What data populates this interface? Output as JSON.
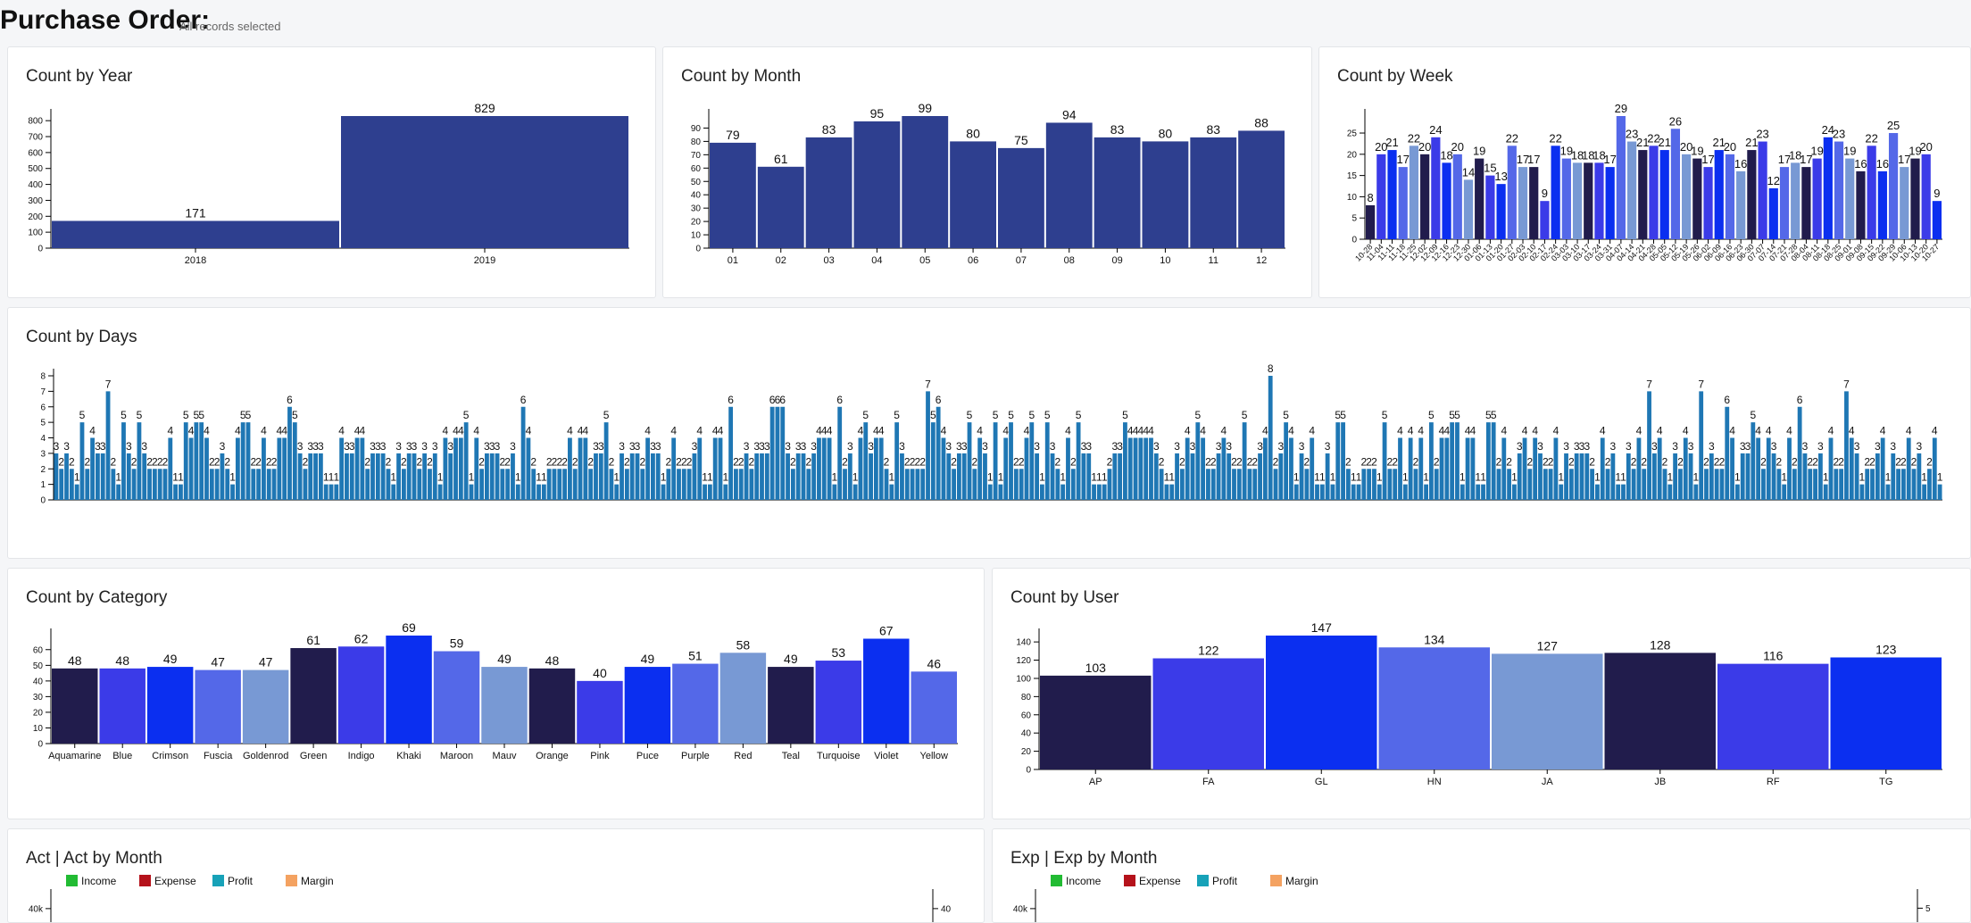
{
  "header": {
    "title": "Purchase Order:",
    "subtitle": "All records selected"
  },
  "chart_data": [
    {
      "type": "bar",
      "title": "Count by Year",
      "categories": [
        "2018",
        "2019"
      ],
      "values": [
        171,
        829
      ],
      "color": "#2e3f8f",
      "ylim": [
        0,
        829
      ],
      "yticks": [
        0,
        100,
        200,
        300,
        400,
        500,
        600,
        700,
        800
      ]
    },
    {
      "type": "bar",
      "title": "Count by Month",
      "categories": [
        "01",
        "02",
        "03",
        "04",
        "05",
        "06",
        "07",
        "08",
        "09",
        "10",
        "11",
        "12"
      ],
      "values": [
        79,
        61,
        83,
        95,
        99,
        80,
        75,
        94,
        83,
        80,
        83,
        88
      ],
      "color": "#2e3f8f",
      "ylim": [
        0,
        99
      ],
      "yticks": [
        0,
        10,
        20,
        30,
        40,
        50,
        60,
        70,
        80,
        90
      ]
    },
    {
      "type": "bar",
      "title": "Count by Week",
      "categories": [
        "10-28",
        "11-04",
        "11-11",
        "11-18",
        "11-25",
        "12-02",
        "12-09",
        "12-16",
        "12-23",
        "12-30",
        "01-06",
        "01-13",
        "01-20",
        "01-27",
        "02-03",
        "02-10",
        "02-17",
        "02-24",
        "03-03",
        "03-10",
        "03-17",
        "03-24",
        "03-31",
        "04-07",
        "04-14",
        "04-21",
        "04-28",
        "05-05",
        "05-12",
        "05-19",
        "05-26",
        "06-02",
        "06-09",
        "06-16",
        "06-23",
        "06-30",
        "07-07",
        "07-14",
        "07-21",
        "07-28",
        "08-04",
        "08-11",
        "08-18",
        "08-25",
        "09-01",
        "09-08",
        "09-15",
        "09-22",
        "09-29",
        "10-06",
        "10-13",
        "10-20",
        "10-27"
      ],
      "values": [
        8,
        20,
        21,
        17,
        22,
        20,
        24,
        18,
        20,
        14,
        19,
        15,
        13,
        22,
        17,
        17,
        9,
        22,
        19,
        18,
        18,
        18,
        17,
        29,
        23,
        21,
        22,
        21,
        26,
        20,
        19,
        17,
        21,
        20,
        16,
        21,
        23,
        12,
        17,
        18,
        17,
        19,
        24,
        23,
        19,
        16,
        22,
        16,
        25,
        17,
        19,
        20,
        9
      ],
      "palette": [
        "#211c4c",
        "#3b3be8",
        "#0b2ff0",
        "#5468e8",
        "#7899d4"
      ],
      "rotate_labels": true,
      "ylim": [
        0,
        29
      ],
      "yticks": [
        0,
        5,
        10,
        15,
        20,
        25
      ]
    },
    {
      "type": "bar",
      "title": "Count by Days",
      "values": [
        3,
        2,
        3,
        2,
        1,
        5,
        2,
        4,
        3,
        3,
        7,
        2,
        1,
        5,
        3,
        2,
        5,
        3,
        2,
        2,
        2,
        2,
        4,
        1,
        1,
        5,
        4,
        5,
        5,
        4,
        2,
        2,
        3,
        2,
        1,
        4,
        5,
        5,
        2,
        2,
        4,
        2,
        2,
        4,
        4,
        6,
        5,
        3,
        2,
        3,
        3,
        3,
        1,
        1,
        1,
        4,
        3,
        3,
        4,
        4,
        2,
        3,
        3,
        3,
        2,
        1,
        3,
        2,
        3,
        3,
        2,
        3,
        2,
        3,
        1,
        4,
        3,
        4,
        4,
        5,
        1,
        4,
        2,
        3,
        3,
        3,
        2,
        2,
        3,
        1,
        6,
        4,
        2,
        1,
        1,
        2,
        2,
        2,
        2,
        4,
        2,
        4,
        4,
        2,
        3,
        3,
        5,
        2,
        1,
        3,
        2,
        3,
        3,
        2,
        4,
        3,
        3,
        1,
        2,
        4,
        2,
        2,
        2,
        3,
        4,
        1,
        1,
        4,
        4,
        1,
        6,
        2,
        2,
        3,
        2,
        3,
        3,
        3,
        6,
        6,
        6,
        3,
        2,
        3,
        3,
        2,
        3,
        4,
        4,
        4,
        1,
        6,
        2,
        3,
        1,
        4,
        5,
        3,
        4,
        4,
        2,
        1,
        5,
        3,
        2,
        2,
        2,
        2,
        7,
        5,
        6,
        4,
        3,
        2,
        3,
        3,
        5,
        2,
        4,
        3,
        1,
        5,
        1,
        4,
        5,
        2,
        2,
        4,
        5,
        3,
        1,
        5,
        3,
        2,
        1,
        4,
        2,
        5,
        3,
        3,
        1,
        1,
        1,
        2,
        3,
        3,
        5,
        4,
        4,
        4,
        4,
        4,
        3,
        2,
        1,
        1,
        3,
        2,
        4,
        3,
        5,
        4,
        2,
        2,
        3,
        4,
        3,
        2,
        2,
        5,
        2,
        2,
        3,
        4,
        8,
        2,
        3,
        5,
        4,
        1,
        3,
        2,
        4,
        1,
        1,
        3,
        1,
        5,
        5,
        2,
        1,
        1,
        2,
        2,
        2,
        1,
        5,
        2,
        2,
        4,
        1,
        4,
        2,
        4,
        1,
        5,
        2,
        4,
        4,
        5,
        5,
        1,
        4,
        4,
        1,
        1,
        5,
        5,
        2,
        4,
        2,
        1,
        3,
        4,
        2,
        4,
        3,
        2,
        2,
        4,
        1,
        3,
        2,
        3,
        3,
        3,
        2,
        1,
        4,
        2,
        3,
        1,
        1,
        3,
        2,
        4,
        2,
        7,
        3,
        4,
        2,
        1,
        3,
        2,
        4,
        3,
        1,
        7,
        2,
        3,
        2,
        2,
        6,
        4,
        1,
        3,
        3,
        5,
        4,
        2,
        4,
        3,
        2,
        1,
        4,
        2,
        6,
        3,
        2,
        2,
        3,
        1,
        4,
        2,
        2,
        7,
        4,
        3,
        1,
        2,
        2,
        3,
        4,
        1,
        3,
        2,
        2,
        4,
        2,
        3,
        1,
        2,
        4,
        1
      ],
      "color": "#1f77b4",
      "ylim": [
        0,
        8
      ],
      "yticks": [
        0,
        1,
        2,
        3,
        4,
        5,
        6,
        7,
        8
      ]
    },
    {
      "type": "bar",
      "title": "Count by Category",
      "categories": [
        "Aquamarine",
        "Blue",
        "Crimson",
        "Fuscia",
        "Goldenrod",
        "Green",
        "Indigo",
        "Khaki",
        "Maroon",
        "Mauv",
        "Orange",
        "Pink",
        "Puce",
        "Purple",
        "Red",
        "Teal",
        "Turquoise",
        "Violet",
        "Yellow"
      ],
      "values": [
        48,
        48,
        49,
        47,
        47,
        61,
        62,
        69,
        59,
        49,
        48,
        40,
        49,
        51,
        58,
        49,
        53,
        67,
        46
      ],
      "palette": [
        "#211c4c",
        "#3b3be8",
        "#0b2ff0",
        "#5468e8",
        "#7899d4"
      ],
      "ylim": [
        0,
        69
      ],
      "yticks": [
        0,
        10,
        20,
        30,
        40,
        50,
        60
      ]
    },
    {
      "type": "bar",
      "title": "Count by User",
      "categories": [
        "AP",
        "FA",
        "GL",
        "HN",
        "JA",
        "JB",
        "RF",
        "TG"
      ],
      "values": [
        103,
        122,
        147,
        134,
        127,
        128,
        116,
        123
      ],
      "palette": [
        "#211c4c",
        "#3b3be8",
        "#0b2ff0",
        "#5468e8",
        "#7899d4"
      ],
      "ylim": [
        0,
        147
      ],
      "yticks": [
        0,
        20,
        40,
        60,
        80,
        100,
        120,
        140
      ]
    },
    {
      "type": "combo",
      "title": "Act | Act by Month",
      "series": [
        {
          "name": "Income",
          "color": "#22bb33"
        },
        {
          "name": "Expense",
          "color": "#b5121b"
        },
        {
          "name": "Profit",
          "color": "#17a2b8"
        },
        {
          "name": "Margin",
          "color": "#f4a261"
        }
      ],
      "ylim": [
        0,
        45000
      ],
      "yticks": [
        {
          "value": 40000,
          "label": "40k"
        }
      ],
      "y2lim": [
        0,
        45
      ],
      "y2ticks": [
        40
      ]
    },
    {
      "type": "combo",
      "title": "Exp | Exp by Month",
      "series": [
        {
          "name": "Income",
          "color": "#22bb33"
        },
        {
          "name": "Expense",
          "color": "#b5121b"
        },
        {
          "name": "Profit",
          "color": "#17a2b8"
        },
        {
          "name": "Margin",
          "color": "#f4a261"
        }
      ],
      "ylim": [
        0,
        45000
      ],
      "yticks": [
        {
          "value": 40000,
          "label": "40k"
        }
      ],
      "y2lim": [
        0,
        5.6
      ],
      "y2ticks": [
        5
      ]
    }
  ]
}
